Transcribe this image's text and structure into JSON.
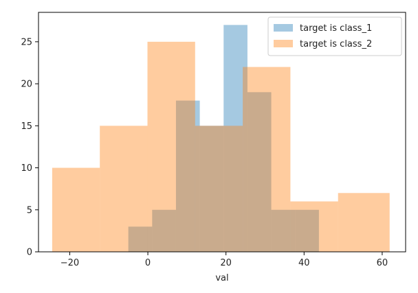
{
  "chart_data": {
    "type": "bar",
    "subtype": "histogram-overlay",
    "xlabel": "val",
    "ylabel": "",
    "title": "",
    "xlim": [
      -28,
      66
    ],
    "ylim": [
      0,
      28.5
    ],
    "xticks": [
      -20,
      0,
      20,
      40,
      60
    ],
    "yticks": [
      0,
      5,
      10,
      15,
      20,
      25
    ],
    "grid": false,
    "legend_position": "top-right",
    "series": [
      {
        "name": "target is class_1",
        "color": "#1f77b4",
        "alpha": 0.4,
        "bin_edges": [
          -5,
          1.1,
          7.2,
          13.3,
          19.4,
          25.5,
          31.6,
          37.7,
          43.8
        ],
        "counts": [
          3,
          5,
          18,
          15,
          27,
          19,
          5,
          5
        ]
      },
      {
        "name": "target is class_2",
        "color": "#ff7f0e",
        "alpha": 0.4,
        "bin_edges": [
          -24.5,
          -12.3,
          -0.1,
          12.1,
          24.3,
          36.5,
          48.7,
          61.9
        ],
        "counts": [
          10,
          15,
          25,
          15,
          22,
          6,
          7
        ]
      }
    ]
  }
}
